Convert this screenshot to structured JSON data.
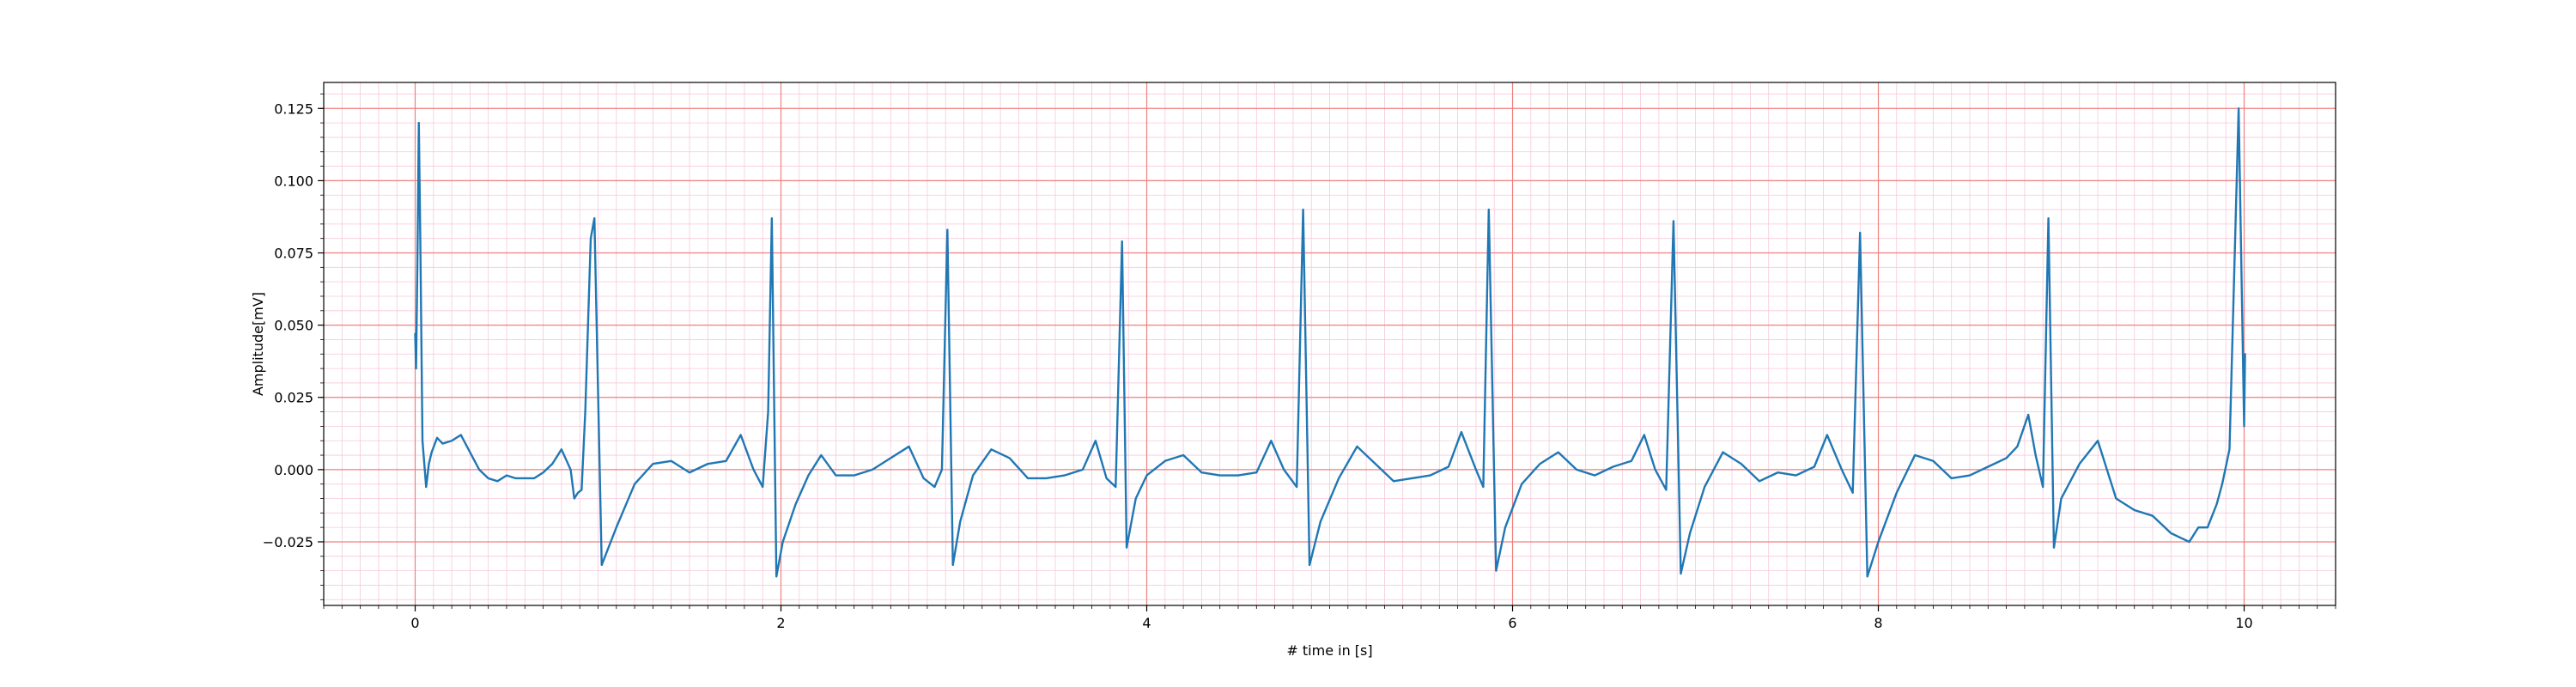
{
  "chart_data": {
    "type": "line",
    "title": "",
    "xlabel": "# time in [s]",
    "ylabel": "Amplitude[mV]",
    "xlim": [
      -0.5,
      10.5
    ],
    "ylim": [
      -0.047,
      0.134
    ],
    "x_major_ticks": [
      0,
      2,
      4,
      6,
      8,
      10
    ],
    "x_tick_labels": [
      "0",
      "2",
      "4",
      "6",
      "8",
      "10"
    ],
    "y_major_ticks": [
      -0.025,
      0.0,
      0.025,
      0.05,
      0.075,
      0.1,
      0.125
    ],
    "y_tick_labels": [
      "−0.025",
      "0.000",
      "0.025",
      "0.050",
      "0.075",
      "0.100",
      "0.125"
    ],
    "grid": {
      "major": true,
      "minor": true,
      "major_color": "#f08080",
      "minor_color": "#f7c8dc"
    },
    "legend": "none",
    "series": [
      {
        "color": "#1f77b4",
        "x": [
          0,
          0.005,
          0.012,
          0.02,
          0.028,
          0.04,
          0.06,
          0.075,
          0.09,
          0.12,
          0.15,
          0.2,
          0.25,
          0.3,
          0.35,
          0.4,
          0.45,
          0.5,
          0.55,
          0.6,
          0.65,
          0.7,
          0.75,
          0.8,
          0.85,
          0.87,
          0.89,
          0.91,
          0.93,
          0.96,
          0.98,
          1.02,
          1.1,
          1.2,
          1.3,
          1.4,
          1.5,
          1.6,
          1.7,
          1.78,
          1.85,
          1.9,
          1.93,
          1.95,
          1.975,
          2.01,
          2.08,
          2.15,
          2.22,
          2.3,
          2.4,
          2.5,
          2.6,
          2.7,
          2.78,
          2.84,
          2.88,
          2.91,
          2.94,
          2.98,
          3.05,
          3.15,
          3.25,
          3.35,
          3.45,
          3.55,
          3.65,
          3.72,
          3.78,
          3.83,
          3.865,
          3.89,
          3.94,
          4.0,
          4.1,
          4.2,
          4.3,
          4.4,
          4.5,
          4.6,
          4.68,
          4.75,
          4.82,
          4.855,
          4.89,
          4.95,
          5.05,
          5.15,
          5.25,
          5.35,
          5.45,
          5.55,
          5.65,
          5.72,
          5.8,
          5.84,
          5.87,
          5.91,
          5.96,
          6.05,
          6.15,
          6.25,
          6.35,
          6.45,
          6.55,
          6.65,
          6.72,
          6.78,
          6.84,
          6.88,
          6.92,
          6.97,
          7.05,
          7.15,
          7.25,
          7.35,
          7.45,
          7.55,
          7.65,
          7.72,
          7.8,
          7.86,
          7.9,
          7.94,
          8.0,
          8.1,
          8.2,
          8.3,
          8.4,
          8.5,
          8.6,
          8.7,
          8.76,
          8.82,
          8.86,
          8.9,
          8.93,
          8.96,
          9.0,
          9.1,
          9.2,
          9.3,
          9.4,
          9.5,
          9.6,
          9.7,
          9.75,
          9.8,
          9.85,
          9.88,
          9.92,
          9.97,
          10.0,
          10.005
        ],
        "values": [
          0.047,
          0.035,
          0.07,
          0.12,
          0.08,
          0.01,
          -0.006,
          0.002,
          0.006,
          0.011,
          0.009,
          0.01,
          0.012,
          0.006,
          0.0,
          -0.003,
          -0.004,
          -0.002,
          -0.003,
          -0.003,
          -0.003,
          -0.001,
          0.002,
          0.007,
          0.0,
          -0.01,
          -0.008,
          -0.007,
          0.02,
          0.08,
          0.087,
          -0.033,
          -0.02,
          -0.005,
          0.002,
          0.003,
          -0.001,
          0.002,
          0.003,
          0.012,
          0.0,
          -0.006,
          0.02,
          0.087,
          -0.037,
          -0.025,
          -0.012,
          -0.002,
          0.005,
          -0.002,
          -0.002,
          0.0,
          0.004,
          0.008,
          -0.003,
          -0.006,
          0.0,
          0.083,
          -0.033,
          -0.018,
          -0.002,
          0.007,
          0.004,
          -0.003,
          -0.003,
          -0.002,
          0.0,
          0.01,
          -0.003,
          -0.006,
          0.079,
          -0.027,
          -0.01,
          -0.002,
          0.003,
          0.005,
          -0.001,
          -0.002,
          -0.002,
          -0.001,
          0.01,
          0.0,
          -0.006,
          0.09,
          -0.033,
          -0.018,
          -0.003,
          0.008,
          0.002,
          -0.004,
          -0.003,
          -0.002,
          0.001,
          0.013,
          0.0,
          -0.006,
          0.09,
          -0.035,
          -0.02,
          -0.005,
          0.002,
          0.006,
          0.0,
          -0.002,
          0.001,
          0.003,
          0.012,
          0.0,
          -0.007,
          0.086,
          -0.036,
          -0.022,
          -0.006,
          0.006,
          0.002,
          -0.004,
          -0.001,
          -0.002,
          0.001,
          0.012,
          0.0,
          -0.008,
          0.082,
          -0.037,
          -0.025,
          -0.008,
          0.005,
          0.003,
          -0.003,
          -0.002,
          0.001,
          0.004,
          0.008,
          0.019,
          0.005,
          -0.006,
          0.087,
          -0.027,
          -0.01,
          0.002,
          0.01,
          -0.01,
          -0.014,
          -0.016,
          -0.022,
          -0.025,
          -0.02,
          -0.02,
          -0.012,
          -0.005,
          0.007,
          0.125,
          0.015,
          0.04
        ]
      }
    ]
  }
}
